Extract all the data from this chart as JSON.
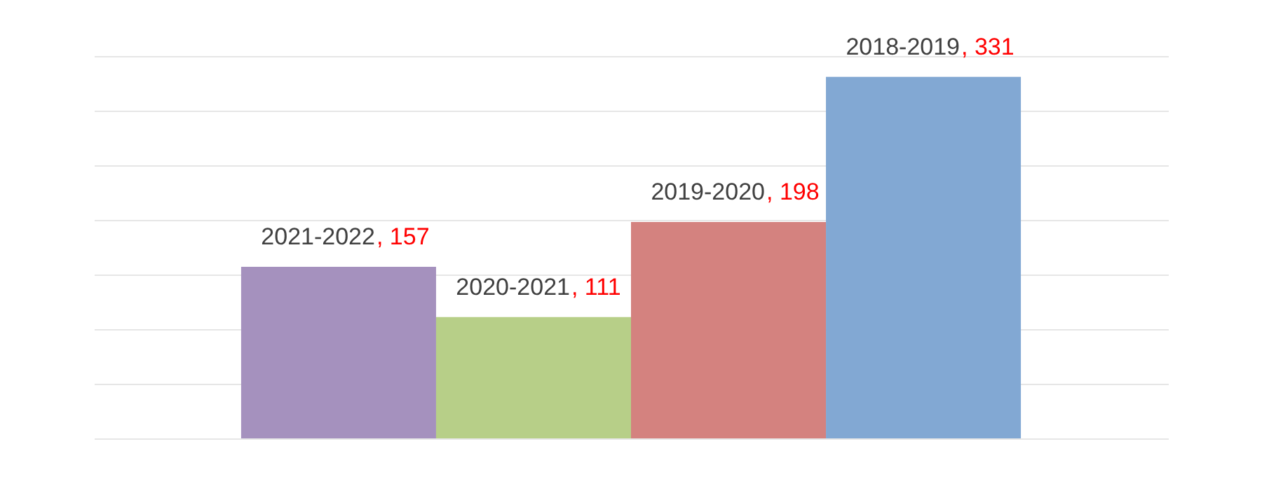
{
  "chart_data": {
    "type": "bar",
    "categories": [
      "2021-2022",
      "2020-2021",
      "2019-2020",
      "2018-2019"
    ],
    "values": [
      157,
      111,
      198,
      331
    ],
    "colors": [
      "#a591be",
      "#b7cf88",
      "#d4827f",
      "#82a8d3"
    ],
    "ylim": [
      0,
      350
    ],
    "yticks": [
      {
        "value": 0,
        "label": null
      },
      {
        "value": 50,
        "label": null
      },
      {
        "value": 100,
        "label": null
      },
      {
        "value": 150,
        "label": null
      },
      {
        "value": 200,
        "label": null
      },
      {
        "value": 250,
        "label": null
      },
      {
        "value": 300,
        "label": null
      },
      {
        "value": 350,
        "label": null
      }
    ],
    "value_labels": [
      ", 157",
      ", 111",
      ", 198",
      ", 331"
    ],
    "grid": "y"
  }
}
